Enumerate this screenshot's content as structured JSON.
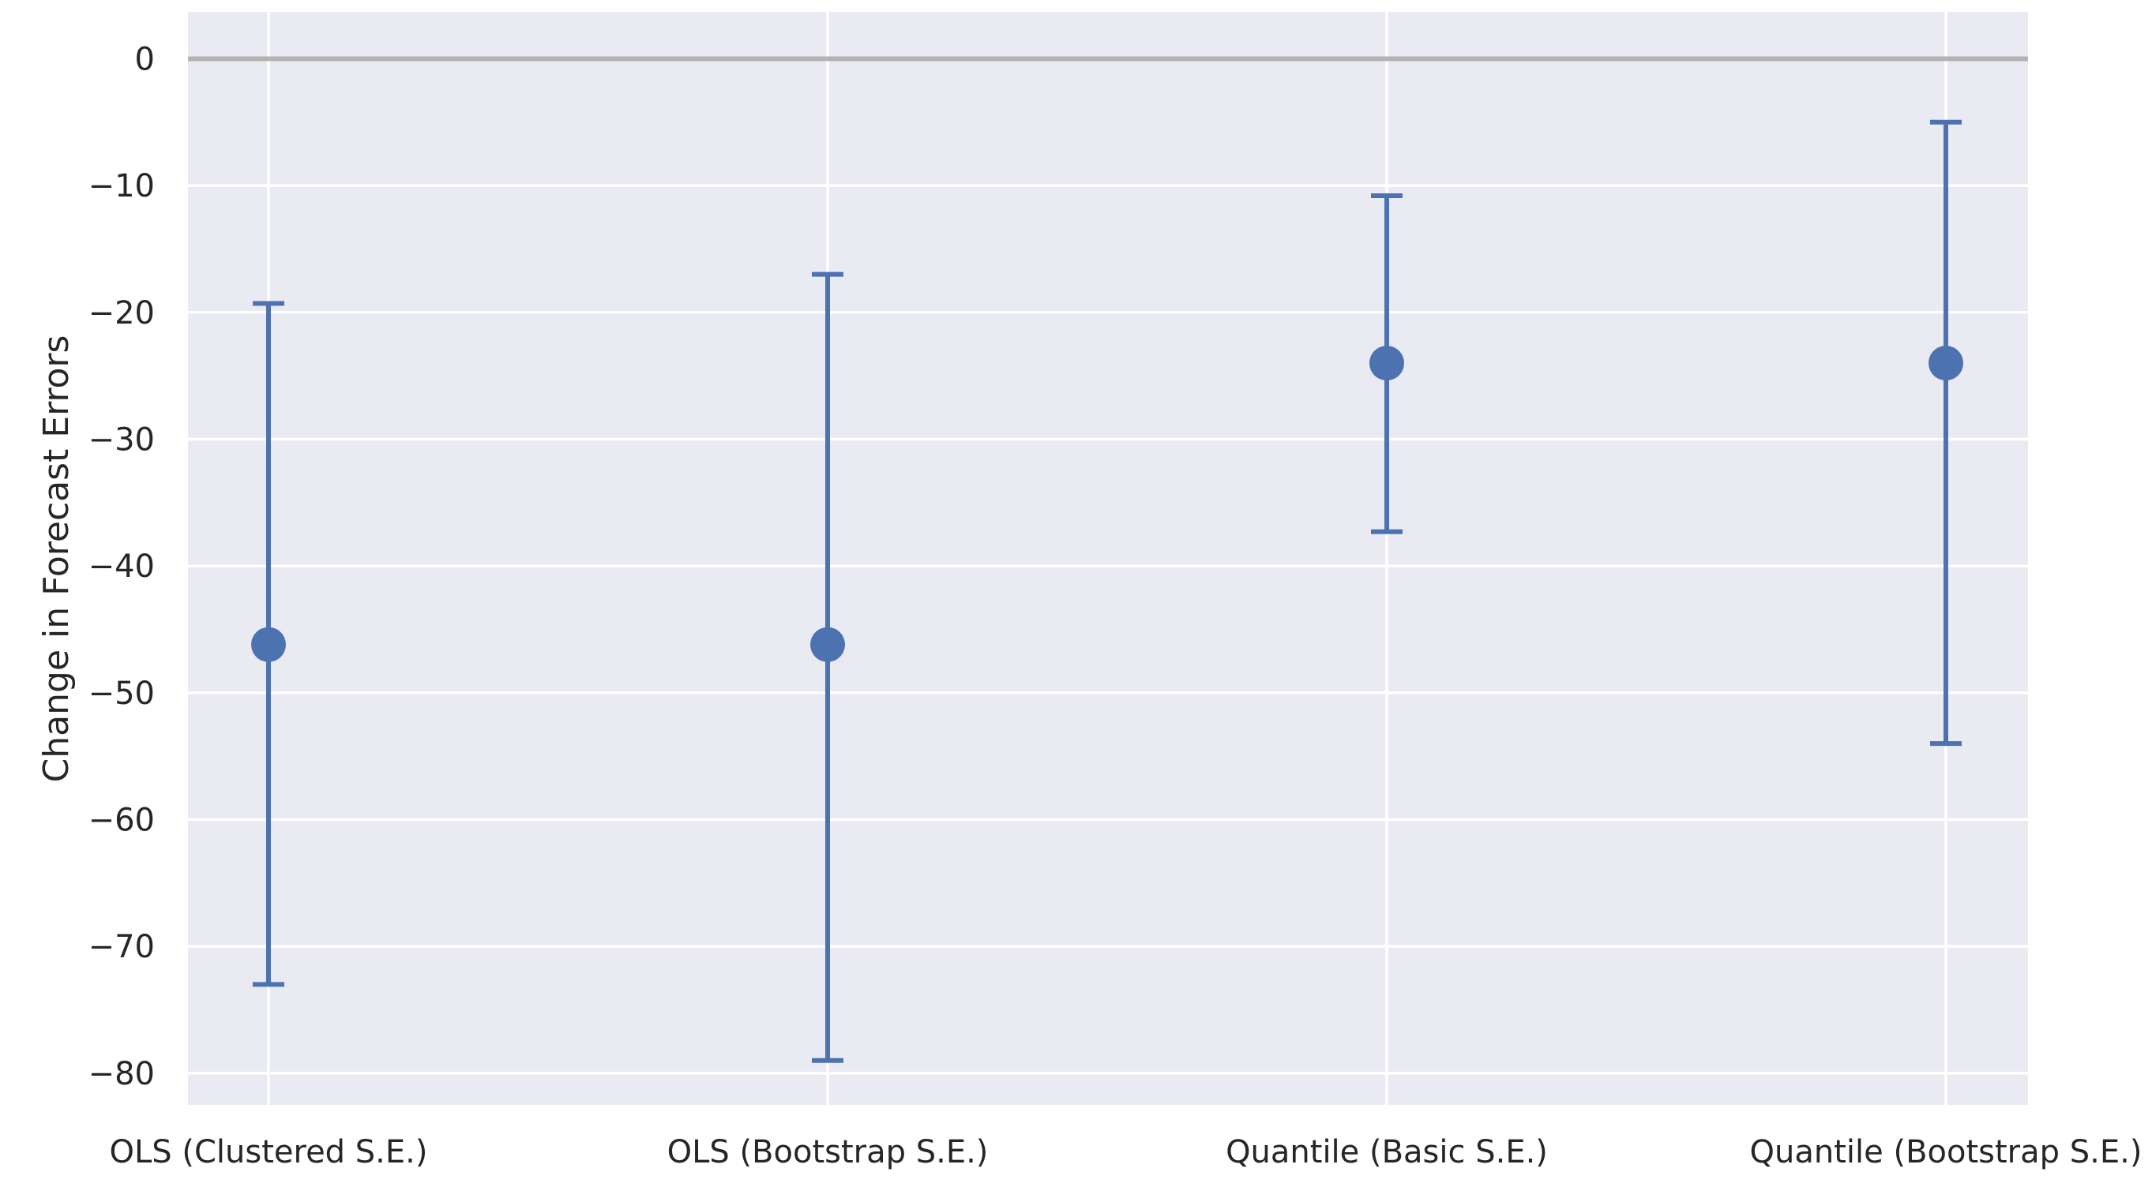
{
  "chart_data": {
    "type": "errorbar",
    "title": "",
    "xlabel": "",
    "ylabel": "Change in Forecast Errors",
    "categories": [
      "OLS (Clustered S.E.)",
      "OLS (Bootstrap S.E.)",
      "Quantile (Basic S.E.)",
      "Quantile (Bootstrap S.E.)"
    ],
    "series": [
      {
        "estimates": [
          -46.2,
          -46.2,
          -24.0,
          -24.0
        ],
        "lower": [
          -73.0,
          -79.0,
          -37.3,
          -54.0
        ],
        "upper": [
          -19.3,
          -17.0,
          -10.8,
          -5.0
        ]
      }
    ],
    "ylim": [
      -82.5,
      3.7
    ],
    "yticks": [
      0,
      -10,
      -20,
      -30,
      -40,
      -50,
      -60,
      -70,
      -80
    ],
    "ytick_labels": [
      "0",
      "−10",
      "−20",
      "−30",
      "−40",
      "−50",
      "−60",
      "−70",
      "−80"
    ],
    "reference_line": 0,
    "grid": true,
    "colors": {
      "marker": "#4c72b0",
      "background": "#eaeaf2",
      "grid": "#ffffff",
      "reference_line": "#b3b3b3",
      "text": "#262626"
    }
  }
}
